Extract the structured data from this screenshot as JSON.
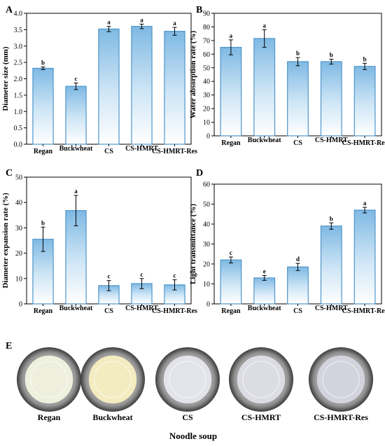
{
  "panel_labels": [
    "A",
    "B",
    "C",
    "D",
    "E"
  ],
  "chart_data": [
    {
      "id": "A",
      "type": "bar",
      "categories": [
        "Regan",
        "Buckwheat",
        "CS",
        "CS-HMRT",
        "CS-HMRT-Res"
      ],
      "values": [
        2.32,
        1.77,
        3.52,
        3.6,
        3.45
      ],
      "errors": [
        0.04,
        0.1,
        0.08,
        0.07,
        0.12
      ],
      "letters": [
        "b",
        "c",
        "a",
        "a",
        "a"
      ],
      "ylabel": "Diameter size (mm)",
      "ylim": [
        0,
        4.0
      ],
      "yticks": [
        "0.0",
        "0.5",
        "1.0",
        "1.5",
        "2.0",
        "2.5",
        "3.0",
        "3.5",
        "4.0"
      ]
    },
    {
      "id": "B",
      "type": "bar",
      "categories": [
        "Regan",
        "Buckwheat",
        "CS",
        "CS-HMRT",
        "CS-HMRT-Res"
      ],
      "values": [
        65,
        71.5,
        54.5,
        54.5,
        51
      ],
      "errors": [
        5.5,
        6.5,
        3,
        1.8,
        2.3
      ],
      "letters": [
        "a",
        "a",
        "b",
        "b",
        "b"
      ],
      "ylabel": "Water absorption rate (%)",
      "ylim": [
        0,
        90
      ],
      "yticks": [
        "0",
        "10",
        "20",
        "30",
        "40",
        "50",
        "60",
        "70",
        "80",
        "90"
      ]
    },
    {
      "id": "C",
      "type": "bar",
      "categories": [
        "Regan",
        "Buckwheat",
        "CS",
        "CS-HMRT",
        "CS-HMRT-Res"
      ],
      "values": [
        25.5,
        36.8,
        7.2,
        8.0,
        7.5
      ],
      "errors": [
        4.8,
        6.0,
        2.0,
        2.0,
        2.0
      ],
      "letters": [
        "b",
        "a",
        "c",
        "c",
        "c"
      ],
      "ylabel": "Diameter expansion rate (%)",
      "ylim": [
        0,
        50
      ],
      "yticks": [
        "0",
        "10",
        "20",
        "30",
        "40",
        "50"
      ]
    },
    {
      "id": "D",
      "type": "bar",
      "categories": [
        "Regan",
        "Buckwheat",
        "CS",
        "CS-HMRT",
        "CS-HMRT-Res"
      ],
      "values": [
        22,
        13,
        18.5,
        39,
        47
      ],
      "errors": [
        1.5,
        1.2,
        1.8,
        1.6,
        1.4
      ],
      "letters": [
        "c",
        "e",
        "d",
        "b",
        "a"
      ],
      "ylabel": "Light transmittance (%)",
      "ylim": [
        0,
        60
      ],
      "yticks": [
        "0",
        "10",
        "20",
        "30",
        "40",
        "50",
        "60"
      ]
    }
  ],
  "soups": {
    "labels": [
      "Regan",
      "Buckwheat",
      "CS",
      "CS-HMRT",
      "CS-HMRT-Res"
    ],
    "caption": "Noodle soup"
  }
}
